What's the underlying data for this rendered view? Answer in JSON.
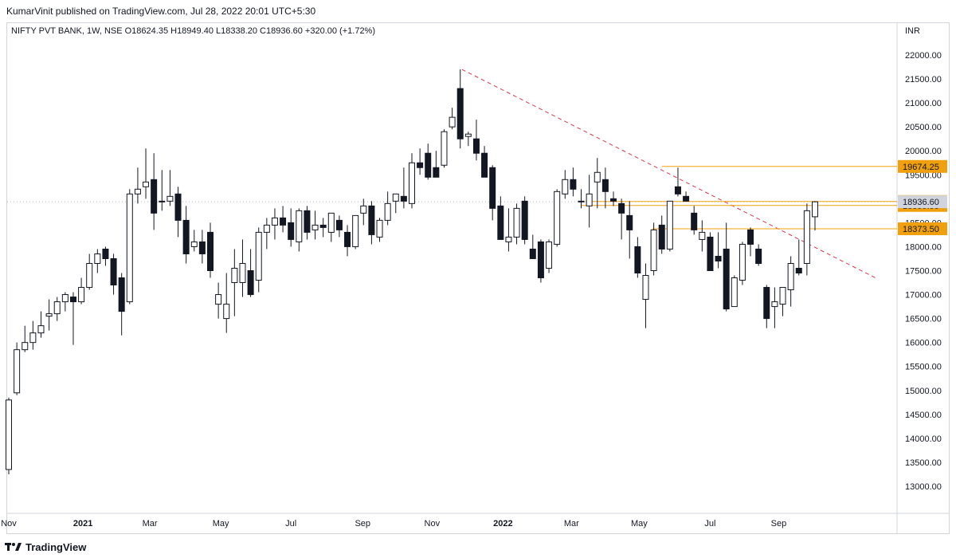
{
  "header": {
    "published": "KumarVinit published on TradingView.com, Jul 28, 2022 20:01 UTC+5:30",
    "symbol_line": "NIFTY PVT BANK, 1W, NSE  O18624.35  H18949.40  L18338.20  C18936.60  +320.00 (+1.72%)"
  },
  "footer": {
    "brand": "TradingView"
  },
  "colors": {
    "up_body": "#ffffff",
    "down_body": "#131722",
    "wick": "#131722",
    "level_line": "#f0a00c",
    "trendline": "#d6394e",
    "current_price_bg": "#d1d4dc",
    "axis_border": "#d1d4dc"
  },
  "chart_data": {
    "type": "candlestick",
    "timeframe": "1W",
    "currency": "INR",
    "ylim": [
      12500,
      22500
    ],
    "yticks": [
      "22000.00",
      "21500.00",
      "21000.00",
      "20500.00",
      "20000.00",
      "19500.00",
      "19000.00",
      "18500.00",
      "18000.00",
      "17500.00",
      "17000.00",
      "16500.00",
      "16000.00",
      "15500.00",
      "15000.00",
      "14500.00",
      "14000.00",
      "13500.00",
      "13000.00"
    ],
    "xticks": [
      {
        "label": "Nov",
        "week": 0,
        "bold": false
      },
      {
        "label": "2021",
        "week": 9.2,
        "bold": true
      },
      {
        "label": "Mar",
        "week": 17.5,
        "bold": false
      },
      {
        "label": "May",
        "week": 26.3,
        "bold": false
      },
      {
        "label": "Jul",
        "week": 35,
        "bold": false
      },
      {
        "label": "Sep",
        "week": 43.9,
        "bold": false
      },
      {
        "label": "Nov",
        "week": 52.5,
        "bold": false
      },
      {
        "label": "2022",
        "week": 61.3,
        "bold": true
      },
      {
        "label": "Mar",
        "week": 69.8,
        "bold": false
      },
      {
        "label": "May",
        "week": 78.2,
        "bold": false
      },
      {
        "label": "Jul",
        "week": 87,
        "bold": false
      },
      {
        "label": "Sep",
        "week": 95.5,
        "bold": false
      }
    ],
    "candles": [
      {
        "o": 13350,
        "h": 14850,
        "l": 13250,
        "c": 14800
      },
      {
        "o": 14950,
        "h": 16000,
        "l": 14900,
        "c": 15850
      },
      {
        "o": 15850,
        "h": 16350,
        "l": 15800,
        "c": 16000
      },
      {
        "o": 16000,
        "h": 16450,
        "l": 15850,
        "c": 16200
      },
      {
        "o": 16200,
        "h": 16650,
        "l": 16100,
        "c": 16350
      },
      {
        "o": 16550,
        "h": 16900,
        "l": 16250,
        "c": 16600
      },
      {
        "o": 16600,
        "h": 16950,
        "l": 16450,
        "c": 16850
      },
      {
        "o": 16850,
        "h": 17050,
        "l": 16650,
        "c": 17000
      },
      {
        "o": 16950,
        "h": 17050,
        "l": 15950,
        "c": 16850
      },
      {
        "o": 16850,
        "h": 17350,
        "l": 16800,
        "c": 17150
      },
      {
        "o": 17150,
        "h": 17850,
        "l": 17100,
        "c": 17650
      },
      {
        "o": 17650,
        "h": 17950,
        "l": 17450,
        "c": 17850
      },
      {
        "o": 17950,
        "h": 18000,
        "l": 17600,
        "c": 17750
      },
      {
        "o": 17750,
        "h": 17850,
        "l": 17000,
        "c": 17200
      },
      {
        "o": 17350,
        "h": 17450,
        "l": 16150,
        "c": 16650
      },
      {
        "o": 16850,
        "h": 19200,
        "l": 16800,
        "c": 19100
      },
      {
        "o": 19100,
        "h": 19650,
        "l": 18900,
        "c": 19200
      },
      {
        "o": 19250,
        "h": 20050,
        "l": 19000,
        "c": 19350
      },
      {
        "o": 19400,
        "h": 19950,
        "l": 18350,
        "c": 18700
      },
      {
        "o": 18950,
        "h": 19600,
        "l": 18750,
        "c": 18950
      },
      {
        "o": 18950,
        "h": 19600,
        "l": 18850,
        "c": 19050
      },
      {
        "o": 19100,
        "h": 19250,
        "l": 18200,
        "c": 18550
      },
      {
        "o": 18550,
        "h": 18850,
        "l": 17650,
        "c": 17850
      },
      {
        "o": 18000,
        "h": 18350,
        "l": 17900,
        "c": 18100
      },
      {
        "o": 18100,
        "h": 18350,
        "l": 17650,
        "c": 17850
      },
      {
        "o": 18300,
        "h": 18500,
        "l": 17350,
        "c": 17500
      },
      {
        "o": 16800,
        "h": 17250,
        "l": 16500,
        "c": 17000
      },
      {
        "o": 16500,
        "h": 17450,
        "l": 16200,
        "c": 16800
      },
      {
        "o": 17250,
        "h": 17950,
        "l": 16550,
        "c": 17550
      },
      {
        "o": 17250,
        "h": 18150,
        "l": 16950,
        "c": 17650
      },
      {
        "o": 17500,
        "h": 17950,
        "l": 16950,
        "c": 17000
      },
      {
        "o": 17300,
        "h": 18400,
        "l": 17050,
        "c": 18300
      },
      {
        "o": 18300,
        "h": 18600,
        "l": 17950,
        "c": 18450
      },
      {
        "o": 18450,
        "h": 18800,
        "l": 18150,
        "c": 18600
      },
      {
        "o": 18600,
        "h": 18850,
        "l": 18300,
        "c": 18450
      },
      {
        "o": 18500,
        "h": 18800,
        "l": 18000,
        "c": 18150
      },
      {
        "o": 18100,
        "h": 18800,
        "l": 17900,
        "c": 18750
      },
      {
        "o": 18750,
        "h": 18850,
        "l": 18150,
        "c": 18300
      },
      {
        "o": 18350,
        "h": 18750,
        "l": 18150,
        "c": 18450
      },
      {
        "o": 18450,
        "h": 18600,
        "l": 18200,
        "c": 18400
      },
      {
        "o": 18300,
        "h": 18650,
        "l": 18100,
        "c": 18700
      },
      {
        "o": 18550,
        "h": 18650,
        "l": 18200,
        "c": 18350
      },
      {
        "o": 18300,
        "h": 18450,
        "l": 17800,
        "c": 18000
      },
      {
        "o": 18000,
        "h": 18650,
        "l": 17950,
        "c": 18650
      },
      {
        "o": 18700,
        "h": 19000,
        "l": 18450,
        "c": 18850
      },
      {
        "o": 18850,
        "h": 18950,
        "l": 18050,
        "c": 18250
      },
      {
        "o": 18200,
        "h": 18600,
        "l": 18100,
        "c": 18550
      },
      {
        "o": 18550,
        "h": 19150,
        "l": 18450,
        "c": 18900
      },
      {
        "o": 18950,
        "h": 19100,
        "l": 18700,
        "c": 19100
      },
      {
        "o": 19050,
        "h": 19650,
        "l": 18800,
        "c": 18950
      },
      {
        "o": 18900,
        "h": 19950,
        "l": 18800,
        "c": 19750
      },
      {
        "o": 19750,
        "h": 20050,
        "l": 19500,
        "c": 19650
      },
      {
        "o": 19950,
        "h": 20150,
        "l": 19400,
        "c": 19450
      },
      {
        "o": 19650,
        "h": 20000,
        "l": 19450,
        "c": 19450
      },
      {
        "o": 19700,
        "h": 20450,
        "l": 19650,
        "c": 20400
      },
      {
        "o": 20500,
        "h": 20900,
        "l": 20450,
        "c": 20700
      },
      {
        "o": 21300,
        "h": 21700,
        "l": 20050,
        "c": 20250
      },
      {
        "o": 20300,
        "h": 20400,
        "l": 20100,
        "c": 20350
      },
      {
        "o": 20250,
        "h": 20650,
        "l": 19800,
        "c": 19950
      },
      {
        "o": 19950,
        "h": 20100,
        "l": 19500,
        "c": 19450
      },
      {
        "o": 19650,
        "h": 19700,
        "l": 18550,
        "c": 18800
      },
      {
        "o": 18850,
        "h": 19050,
        "l": 18150,
        "c": 18150
      },
      {
        "o": 18100,
        "h": 18800,
        "l": 17900,
        "c": 18200
      },
      {
        "o": 18200,
        "h": 18900,
        "l": 18050,
        "c": 18800
      },
      {
        "o": 18950,
        "h": 19050,
        "l": 18050,
        "c": 18150
      },
      {
        "o": 17950,
        "h": 18250,
        "l": 17750,
        "c": 17750
      },
      {
        "o": 18100,
        "h": 18150,
        "l": 17250,
        "c": 17350
      },
      {
        "o": 17550,
        "h": 18150,
        "l": 17450,
        "c": 18100
      },
      {
        "o": 18050,
        "h": 19200,
        "l": 18000,
        "c": 19150
      },
      {
        "o": 19100,
        "h": 19600,
        "l": 19000,
        "c": 19400
      },
      {
        "o": 19400,
        "h": 19650,
        "l": 19050,
        "c": 19200
      },
      {
        "o": 18950,
        "h": 19200,
        "l": 18800,
        "c": 18950
      },
      {
        "o": 18850,
        "h": 19500,
        "l": 18400,
        "c": 19100
      },
      {
        "o": 19350,
        "h": 19850,
        "l": 18800,
        "c": 19550
      },
      {
        "o": 19400,
        "h": 19650,
        "l": 18800,
        "c": 19150
      },
      {
        "o": 19000,
        "h": 19150,
        "l": 18850,
        "c": 18950
      },
      {
        "o": 18900,
        "h": 19000,
        "l": 18150,
        "c": 18700
      },
      {
        "o": 18650,
        "h": 18950,
        "l": 17750,
        "c": 18350
      },
      {
        "o": 18000,
        "h": 18200,
        "l": 17350,
        "c": 17450
      },
      {
        "o": 16900,
        "h": 17650,
        "l": 16300,
        "c": 17400
      },
      {
        "o": 17500,
        "h": 18500,
        "l": 17400,
        "c": 18350
      },
      {
        "o": 18450,
        "h": 18650,
        "l": 17850,
        "c": 17950
      },
      {
        "o": 17950,
        "h": 18850,
        "l": 17900,
        "c": 18950
      },
      {
        "o": 19250,
        "h": 19650,
        "l": 19050,
        "c": 19100
      },
      {
        "o": 19050,
        "h": 19150,
        "l": 18950,
        "c": 18950
      },
      {
        "o": 18700,
        "h": 18850,
        "l": 18250,
        "c": 18350
      },
      {
        "o": 18150,
        "h": 18550,
        "l": 17900,
        "c": 18300
      },
      {
        "o": 18200,
        "h": 18300,
        "l": 17550,
        "c": 17500
      },
      {
        "o": 17800,
        "h": 18300,
        "l": 17550,
        "c": 17700
      },
      {
        "o": 17950,
        "h": 18500,
        "l": 16650,
        "c": 16700
      },
      {
        "o": 16750,
        "h": 17400,
        "l": 16750,
        "c": 17350
      },
      {
        "o": 17300,
        "h": 18100,
        "l": 17200,
        "c": 18050
      },
      {
        "o": 18350,
        "h": 18400,
        "l": 17800,
        "c": 18050
      },
      {
        "o": 17950,
        "h": 18050,
        "l": 17600,
        "c": 17650
      },
      {
        "o": 17150,
        "h": 17200,
        "l": 16300,
        "c": 16500
      },
      {
        "o": 16750,
        "h": 17150,
        "l": 16300,
        "c": 16850
      },
      {
        "o": 16800,
        "h": 17150,
        "l": 16550,
        "c": 17150
      },
      {
        "o": 17100,
        "h": 17800,
        "l": 16750,
        "c": 17650
      },
      {
        "o": 17550,
        "h": 18150,
        "l": 17400,
        "c": 17450
      },
      {
        "o": 17650,
        "h": 18900,
        "l": 17400,
        "c": 18750
      },
      {
        "o": 18624.35,
        "h": 18949.4,
        "l": 18338.2,
        "c": 18936.6
      }
    ],
    "levels": [
      {
        "value": 19674.25,
        "label": "19674.25",
        "from_week": 81
      },
      {
        "value": 18942.7,
        "label": "18942.70",
        "from_week": 71.5
      },
      {
        "value": 18859.95,
        "label": "18859.95",
        "from_week": 71
      },
      {
        "value": 18373.5,
        "label": "18373.50",
        "from_week": 79.8
      }
    ],
    "current_price": {
      "value": 18936.6,
      "label": "18936.60"
    },
    "trendline": {
      "from": {
        "week": 56.2,
        "price": 21700
      },
      "to": {
        "week": 107.5,
        "price": 17350
      }
    }
  }
}
